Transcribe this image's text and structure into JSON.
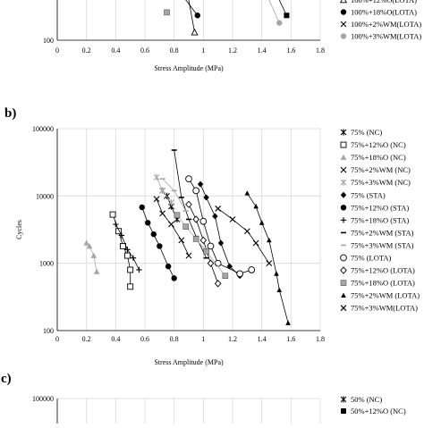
{
  "chart_data": [
    {
      "type": "scatter",
      "panel": "a",
      "xlabel": "Stress Amplitude (MPa)",
      "ylabel": "",
      "xlim": [
        0,
        1.8
      ],
      "x_ticks": [
        "0",
        "0.2",
        "0.4",
        "0.6",
        "0.8",
        "1",
        "1.2",
        "1.4",
        "1.6",
        "1.8"
      ],
      "y_ticks_visible": [
        "100"
      ],
      "y_scale": "log",
      "grid": true,
      "legend_position": "right",
      "series": [
        {
          "name": "100%+12%O(LOTA)",
          "marker": "triangle-open",
          "values": [
            [
              0.94,
              140
            ]
          ]
        },
        {
          "name": "100%+18%O(LOTA)",
          "marker": "circle-filled",
          "values": [
            [
              0.96,
              290
            ]
          ]
        },
        {
          "name": "100%+2%WM(LOTA)",
          "marker": "x",
          "values": []
        },
        {
          "name": "100%+3%WM(LOTA)",
          "marker": "circle-gray",
          "values": [
            [
              1.52,
              210
            ]
          ]
        },
        {
          "name": "",
          "marker": "square-gray",
          "values": [
            [
              0.75,
              330
            ]
          ]
        },
        {
          "name": "",
          "marker": "square-filled",
          "values": [
            [
              1.57,
              290
            ]
          ]
        }
      ]
    },
    {
      "type": "scatter",
      "panel": "b",
      "xlabel": "Stress Amplitude (MPa)",
      "ylabel": "Cycles",
      "xlim": [
        0,
        1.8
      ],
      "ylim": [
        100,
        100000
      ],
      "y_scale": "log",
      "x_ticks": [
        "0",
        "0.2",
        "0.4",
        "0.6",
        "0.8",
        "1",
        "1.2",
        "1.4",
        "1.6",
        "1.8"
      ],
      "y_ticks": [
        "100",
        "1000",
        "10000",
        "100000"
      ],
      "grid": true,
      "legend_position": "right",
      "series": [
        {
          "name": "75% (NC)",
          "marker": "asterisk",
          "values": [
            [
              0.72,
              12000
            ],
            [
              0.75,
              10000
            ],
            [
              0.78,
              7000
            ],
            [
              0.82,
              4500
            ]
          ]
        },
        {
          "name": "75%+12%O (NC)",
          "marker": "square-open",
          "values": [
            [
              0.38,
              5300
            ],
            [
              0.42,
              3000
            ],
            [
              0.45,
              1800
            ],
            [
              0.48,
              1300
            ],
            [
              0.5,
              800
            ],
            [
              0.5,
              450
            ]
          ]
        },
        {
          "name": "75%+18%O (NC)",
          "marker": "triangle-gray",
          "values": [
            [
              0.2,
              2000
            ],
            [
              0.22,
              1800
            ],
            [
              0.25,
              1300
            ],
            [
              0.27,
              750
            ]
          ]
        },
        {
          "name": "75%+2%WM (NC)",
          "marker": "x",
          "values": [
            [
              0.68,
              9000
            ],
            [
              0.72,
              5500
            ],
            [
              0.78,
              3800
            ],
            [
              0.85,
              2200
            ],
            [
              0.9,
              1300
            ]
          ]
        },
        {
          "name": "75%+3%WM (NC)",
          "marker": "asterisk-gray",
          "values": [
            [
              0.68,
              19000
            ],
            [
              0.72,
              12000
            ],
            [
              0.78,
              8000
            ]
          ]
        },
        {
          "name": "75% (STA)",
          "marker": "diamond-filled",
          "values": [
            [
              0.98,
              15000
            ],
            [
              1.02,
              9500
            ],
            [
              1.08,
              5000
            ],
            [
              1.12,
              2000
            ],
            [
              1.18,
              900
            ],
            [
              1.25,
              650
            ]
          ]
        },
        {
          "name": "75%+12%O (STA)",
          "marker": "circle-filled",
          "values": [
            [
              0.58,
              6800
            ],
            [
              0.62,
              4000
            ],
            [
              0.66,
              2700
            ],
            [
              0.7,
              1800
            ],
            [
              0.76,
              900
            ],
            [
              0.8,
              600
            ]
          ]
        },
        {
          "name": "75%+18%O (STA)",
          "marker": "plus",
          "values": [
            [
              0.4,
              3800
            ],
            [
              0.44,
              2600
            ],
            [
              0.48,
              1600
            ],
            [
              0.52,
              1200
            ],
            [
              0.56,
              800
            ]
          ]
        },
        {
          "name": "75%+2%WM (STA)",
          "marker": "dash",
          "values": [
            [
              0.8,
              48000
            ],
            [
              0.85,
              9500
            ],
            [
              0.9,
              4500
            ],
            [
              0.95,
              2500
            ],
            [
              1.02,
              1200
            ]
          ]
        },
        {
          "name": "75%+3%WM (STA)",
          "marker": "dash-gray",
          "values": [
            [
              0.72,
              18000
            ],
            [
              0.8,
              12000
            ],
            [
              0.88,
              6000
            ]
          ]
        },
        {
          "name": "75% (LOTA)",
          "marker": "circle-open",
          "values": [
            [
              0.9,
              18000
            ],
            [
              0.95,
              12000
            ],
            [
              1.0,
              4200
            ],
            [
              1.05,
              1800
            ],
            [
              1.1,
              1000
            ],
            [
              1.25,
              700
            ],
            [
              1.33,
              800
            ]
          ]
        },
        {
          "name": "75%+12%O (LOTA)",
          "marker": "diamond-open",
          "values": [
            [
              0.9,
              7500
            ],
            [
              0.95,
              4500
            ],
            [
              1.0,
              2200
            ],
            [
              1.05,
              1000
            ],
            [
              1.1,
              500
            ]
          ]
        },
        {
          "name": "75%+18%O (LOTA)",
          "marker": "square-gray",
          "values": [
            [
              0.82,
              5200
            ],
            [
              0.88,
              3500
            ],
            [
              0.95,
              2300
            ],
            [
              1.02,
              1500
            ],
            [
              1.15,
              650
            ]
          ]
        },
        {
          "name": "75%+2%WM (LOTA)",
          "marker": "triangle-filled",
          "values": [
            [
              1.3,
              11000
            ],
            [
              1.36,
              7000
            ],
            [
              1.4,
              4000
            ],
            [
              1.45,
              2200
            ],
            [
              1.5,
              700
            ],
            [
              1.52,
              400
            ],
            [
              1.58,
              130
            ]
          ]
        },
        {
          "name": "75%+3%WM(LOTA)",
          "marker": "x",
          "values": [
            [
              1.1,
              6500
            ],
            [
              1.2,
              4500
            ],
            [
              1.3,
              3000
            ],
            [
              1.36,
              2000
            ],
            [
              1.45,
              1000
            ]
          ]
        }
      ]
    },
    {
      "type": "scatter",
      "panel": "c",
      "xlabel": "",
      "ylabel": "",
      "y_ticks_visible": [
        "100000"
      ],
      "y_scale": "log",
      "grid": true,
      "legend_position": "right",
      "series": [
        {
          "name": "50% (NC)",
          "marker": "asterisk",
          "values": []
        },
        {
          "name": "50%+12%O (NC)",
          "marker": "square-filled",
          "values": []
        }
      ]
    }
  ],
  "labels": {
    "panel_b": "b)",
    "panel_c": "c)"
  },
  "colors": {
    "axis": "#000000",
    "grid": "#d9d9d9",
    "gray_marker": "#a6a6a6",
    "dark_marker": "#000000"
  }
}
